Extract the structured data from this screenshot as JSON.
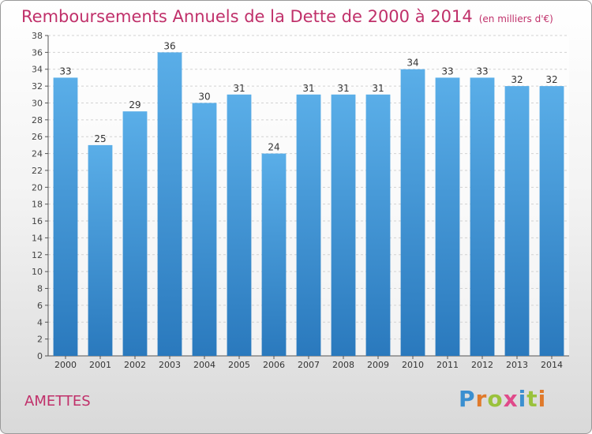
{
  "title": "Remboursements Annuels de la Dette de 2000 à 2014",
  "unit_note": "(en milliers d'€)",
  "commune": "AMETTES",
  "logo_letters": [
    "P",
    "r",
    "o",
    "x",
    "i",
    "t",
    "i"
  ],
  "colors": {
    "accent": "#c0306a",
    "bar_top": "#5aaee8",
    "bar_bottom": "#2a79bd"
  },
  "chart_data": {
    "type": "bar",
    "title": "Remboursements Annuels de la Dette de 2000 à 2014",
    "categories": [
      "2000",
      "2001",
      "2002",
      "2003",
      "2004",
      "2005",
      "2006",
      "2007",
      "2008",
      "2009",
      "2010",
      "2011",
      "2012",
      "2013",
      "2014"
    ],
    "values": [
      33,
      25,
      29,
      36,
      30,
      31,
      24,
      31,
      31,
      31,
      34,
      33,
      33,
      32,
      32
    ],
    "ylim": [
      0,
      38
    ],
    "ytick_step": 2,
    "grid": "horizontal",
    "data_labels": true,
    "xlabel": "",
    "ylabel": ""
  }
}
